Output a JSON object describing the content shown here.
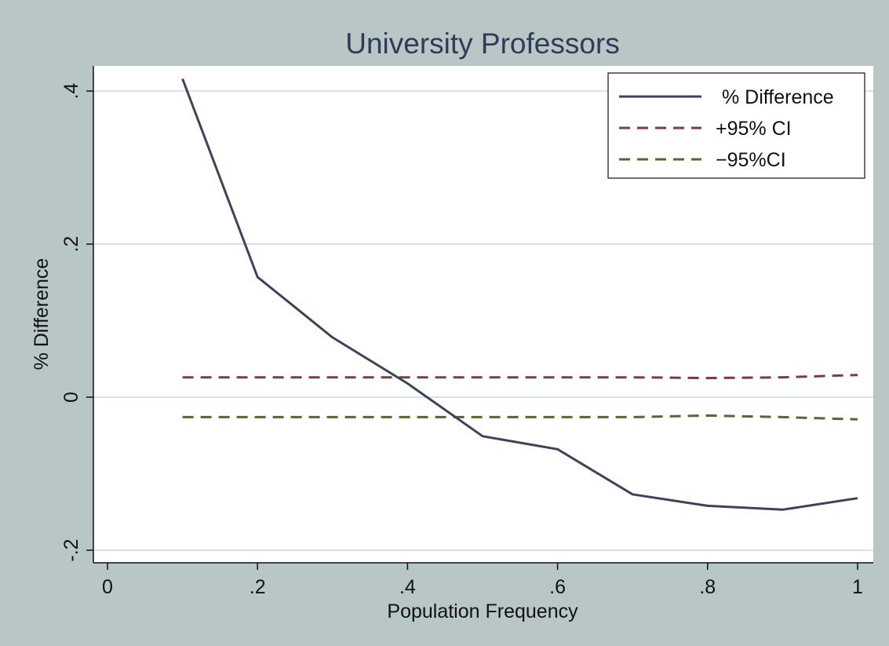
{
  "chart_data": {
    "type": "line",
    "title": "University Professors",
    "xlabel": "Population Frequency",
    "ylabel": "% Difference",
    "xlim": [
      0,
      1
    ],
    "ylim": [
      -0.2,
      0.4
    ],
    "x_ticks": [
      0,
      0.2,
      0.4,
      0.6,
      0.8,
      1
    ],
    "x_tick_labels": [
      "0",
      ".2",
      ".4",
      ".6",
      ".8",
      "1"
    ],
    "y_ticks": [
      -0.2,
      0,
      0.2,
      0.4
    ],
    "y_tick_labels": [
      "-.2",
      "0",
      ".2",
      ".4"
    ],
    "grid": "horizontal",
    "legend_position": "top-right",
    "series": [
      {
        "name": "% Difference",
        "style": "solid",
        "color": "#3b4459",
        "x": [
          0.1,
          0.2,
          0.3,
          0.4,
          0.5,
          0.6,
          0.7,
          0.8,
          0.9,
          1.0
        ],
        "y": [
          0.416,
          0.157,
          0.078,
          0.018,
          -0.051,
          -0.068,
          -0.127,
          -0.142,
          -0.147,
          -0.132
        ]
      },
      {
        "name": "+95% CI",
        "style": "dashed",
        "color": "#7a3c42",
        "x": [
          0.1,
          0.2,
          0.3,
          0.4,
          0.5,
          0.6,
          0.7,
          0.8,
          0.9,
          1.0
        ],
        "y": [
          0.026,
          0.026,
          0.026,
          0.026,
          0.026,
          0.026,
          0.026,
          0.025,
          0.026,
          0.029
        ]
      },
      {
        "name": "−95%CI",
        "style": "dashed",
        "color": "#5b6338",
        "x": [
          0.1,
          0.2,
          0.3,
          0.4,
          0.5,
          0.6,
          0.7,
          0.8,
          0.9,
          1.0
        ],
        "y": [
          -0.026,
          -0.026,
          -0.026,
          -0.026,
          -0.026,
          -0.026,
          -0.026,
          -0.024,
          -0.026,
          -0.029
        ]
      }
    ]
  }
}
